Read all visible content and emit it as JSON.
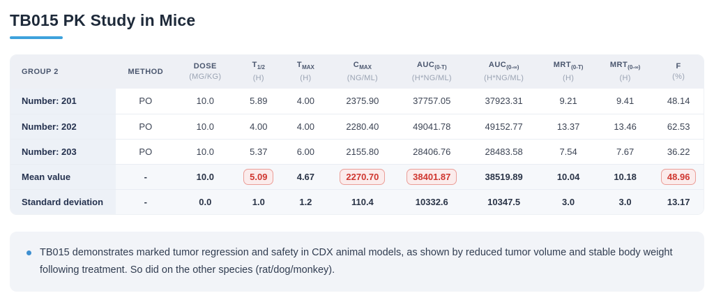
{
  "title": "TB015 PK Study in Mice",
  "table": {
    "columns": [
      {
        "id": "group",
        "label": "GROUP 2",
        "subscript": "",
        "unit": ""
      },
      {
        "id": "method",
        "label": "METHOD",
        "subscript": "",
        "unit": ""
      },
      {
        "id": "dose",
        "label": "DOSE",
        "subscript": "",
        "unit": "(MG/KG)"
      },
      {
        "id": "t-half",
        "label": "T",
        "subscript": "1/2",
        "unit": "(H)"
      },
      {
        "id": "t-max",
        "label": "T",
        "subscript": "MAX",
        "unit": "(H)"
      },
      {
        "id": "c-max",
        "label": "C",
        "subscript": "MAX",
        "unit": "(NG/ML)"
      },
      {
        "id": "auc-0-t",
        "label": "AUC",
        "subscript": "(0-T)",
        "unit": "(H*NG/ML)"
      },
      {
        "id": "auc-0-inf",
        "label": "AUC",
        "subscript": "(0-∞)",
        "unit": "(H*NG/ML)"
      },
      {
        "id": "mrt-0-t",
        "label": "MRT",
        "subscript": "(0-T)",
        "unit": "(H)"
      },
      {
        "id": "mrt-0-inf",
        "label": "MRT",
        "subscript": "(0-∞)",
        "unit": "(H)"
      },
      {
        "id": "f",
        "label": "F",
        "subscript": "",
        "unit": "(%)"
      }
    ],
    "rows": [
      {
        "label": "Number: 201",
        "bold_values": false,
        "shaded": false,
        "values": [
          "PO",
          "10.0",
          "5.89",
          "4.00",
          "2375.90",
          "37757.05",
          "37923.31",
          "9.21",
          "9.41",
          "48.14"
        ],
        "highlighted": []
      },
      {
        "label": "Number: 202",
        "bold_values": false,
        "shaded": false,
        "values": [
          "PO",
          "10.0",
          "4.00",
          "4.00",
          "2280.40",
          "49041.78",
          "49152.77",
          "13.37",
          "13.46",
          "62.53"
        ],
        "highlighted": []
      },
      {
        "label": "Number: 203",
        "bold_values": false,
        "shaded": false,
        "values": [
          "PO",
          "10.0",
          "5.37",
          "6.00",
          "2155.80",
          "28406.76",
          "28483.58",
          "7.54",
          "7.67",
          "36.22"
        ],
        "highlighted": []
      },
      {
        "label": "Mean value",
        "bold_values": true,
        "shaded": true,
        "values": [
          "-",
          "10.0",
          "5.09",
          "4.67",
          "2270.70",
          "38401.87",
          "38519.89",
          "10.04",
          "10.18",
          "48.96"
        ],
        "highlighted": [
          2,
          4,
          5,
          9
        ]
      },
      {
        "label": "Standard deviation",
        "bold_values": true,
        "shaded": true,
        "values": [
          "-",
          "0.0",
          "1.0",
          "1.2",
          "110.4",
          "10332.6",
          "10347.5",
          "3.0",
          "3.0",
          "13.17"
        ],
        "highlighted": []
      }
    ]
  },
  "note": {
    "text": "TB015 demonstrates marked tumor regression and safety in CDX animal models, as shown by reduced tumor volume and stable body weight following treatment. So did on the other species (rat/dog/monkey)."
  },
  "colors": {
    "accent_underline": "#3ea2dc",
    "highlight_red_text": "#cf3730",
    "highlight_red_border": "#eb9d97",
    "highlight_red_bg": "#fbecec",
    "note_bullet_blue": "#3e8fd0"
  }
}
